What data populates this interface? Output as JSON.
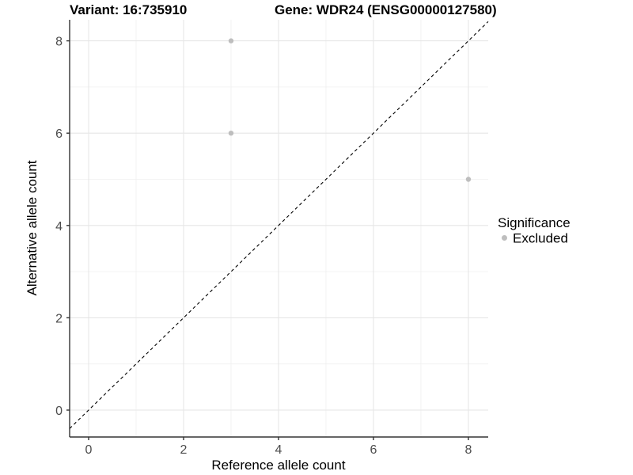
{
  "chart_data": {
    "type": "scatter",
    "title_left": "Variant: 16:735910",
    "title_right": "Gene: WDR24 (ENSG00000127580)",
    "xlabel": "Reference allele count",
    "ylabel": "Alternative allele count",
    "x_ticks": [
      0,
      2,
      4,
      6,
      8
    ],
    "y_ticks": [
      0,
      2,
      4,
      6,
      8
    ],
    "x_minor_ticks": [
      1,
      3,
      5,
      7
    ],
    "y_minor_ticks": [
      1,
      3,
      5,
      7
    ],
    "xlim": [
      -0.4,
      8.417
    ],
    "ylim": [
      -0.583,
      8.456
    ],
    "grid": "major+minor",
    "series": [
      {
        "name": "Excluded",
        "color": "#bebebe",
        "points": [
          {
            "x": 3,
            "y": 8
          },
          {
            "x": 3,
            "y": 6
          },
          {
            "x": 8,
            "y": 5
          }
        ]
      }
    ],
    "reference_line": {
      "type": "identity",
      "style": "dashed",
      "color": "#000000"
    },
    "legend": {
      "position": "right",
      "title": "Significance",
      "items": [
        {
          "label": "Excluded",
          "color": "#bebebe"
        }
      ]
    },
    "colors": {
      "background": "#ffffff",
      "axis_line": "#333333",
      "tick_mark": "#333333",
      "grid_major": "#e6e6e6",
      "grid_minor": "#f0f0f0",
      "point": "#bebebe"
    }
  }
}
